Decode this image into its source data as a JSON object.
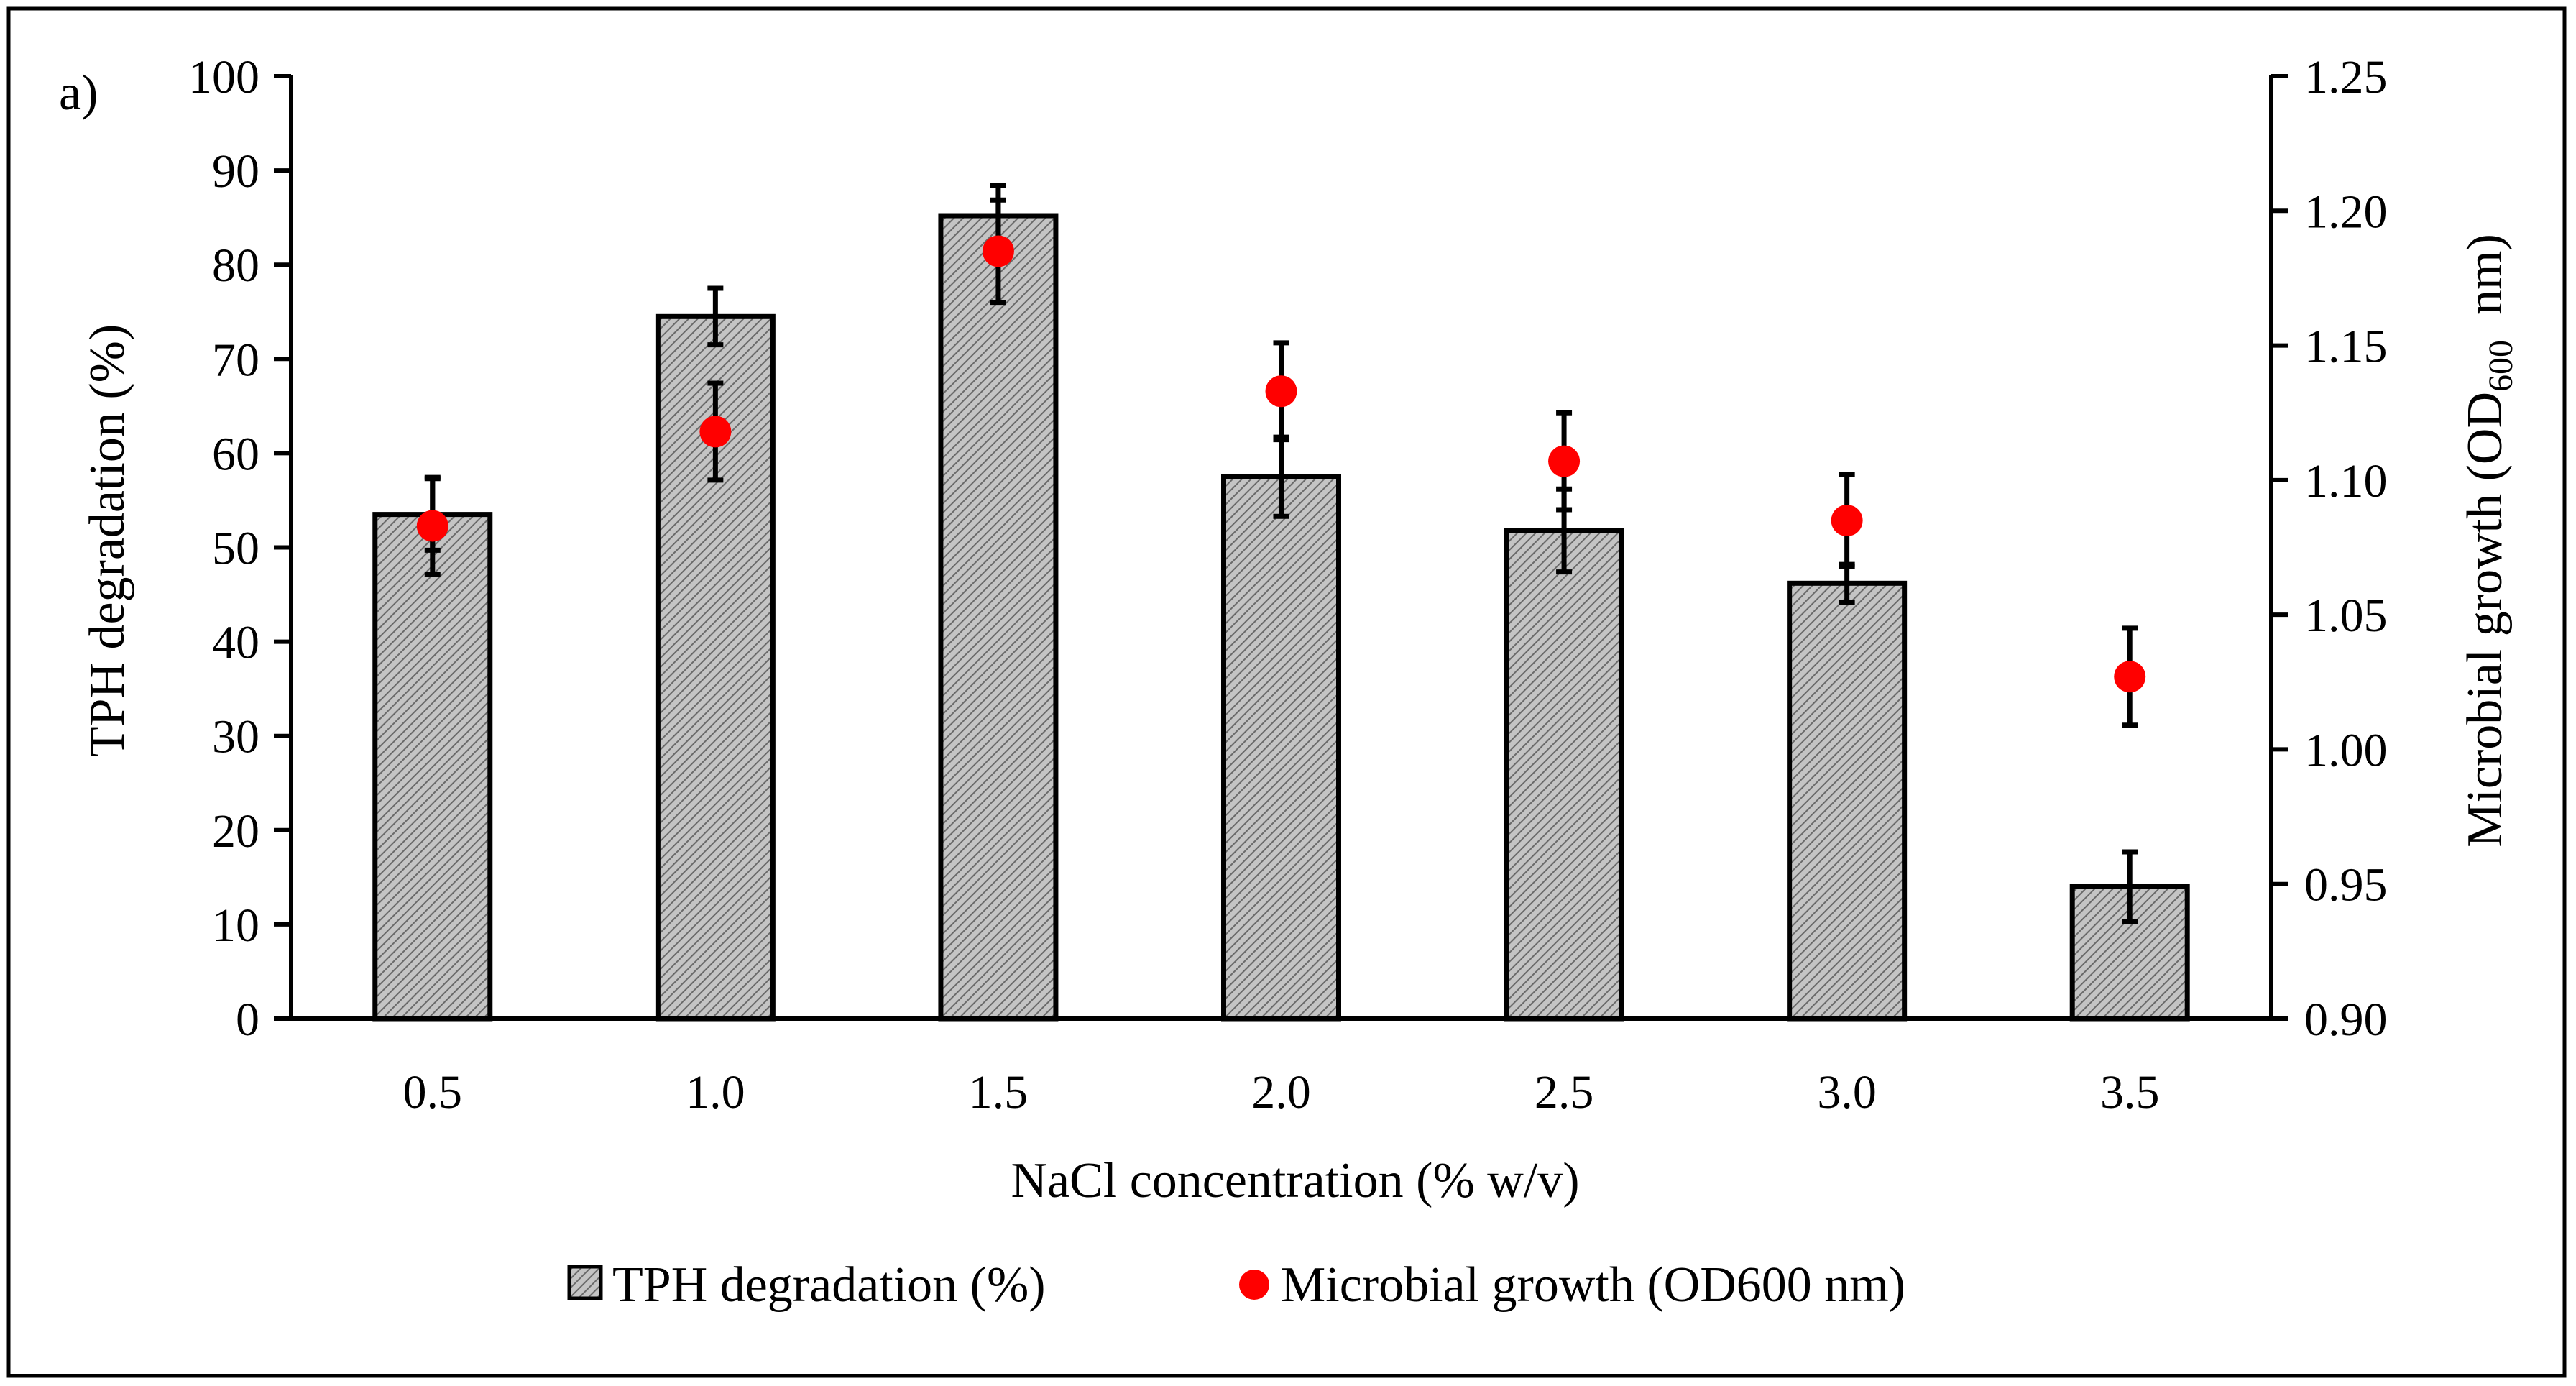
{
  "chart_data": {
    "type": "bar",
    "panel_label": "a)",
    "xlabel": "NaCl concentration (% w/v)",
    "ylabel": "TPH degradation (%)",
    "y2label": {
      "prefix": "Microbial growth (OD",
      "subscript": "600",
      "suffix": "  nm)"
    },
    "categories": [
      "0.5",
      "1.0",
      "1.5",
      "2.0",
      "2.5",
      "3.0",
      "3.5"
    ],
    "ylim": [
      0,
      100
    ],
    "y2lim": [
      0.9,
      1.25
    ],
    "y_ticks": [
      "0",
      "10",
      "20",
      "30",
      "40",
      "50",
      "60",
      "70",
      "80",
      "90",
      "100"
    ],
    "y2_ticks": [
      "0.90",
      "0.95",
      "1.00",
      "1.05",
      "1.10",
      "1.15",
      "1.20",
      "1.25"
    ],
    "series": [
      {
        "name": "TPH degradation (%)",
        "type": "bar",
        "axis": "left",
        "values": [
          53.5,
          74.5,
          85.2,
          57.5,
          51.8,
          46.2,
          14.0
        ],
        "errors": [
          3.8,
          3.0,
          3.2,
          4.2,
          4.4,
          2.0,
          3.7
        ]
      },
      {
        "name": "Microbial growth (OD600 nm)",
        "type": "scatter",
        "axis": "right",
        "color": "#ff0000",
        "values": [
          1.083,
          1.118,
          1.185,
          1.133,
          1.107,
          1.085,
          1.027
        ],
        "errors": [
          0.018,
          0.018,
          0.019,
          0.018,
          0.018,
          0.017,
          0.018
        ]
      }
    ],
    "legend": {
      "position": "bottom",
      "items": [
        "TPH degradation (%)",
        "Microbial growth (OD600 nm)"
      ]
    }
  }
}
